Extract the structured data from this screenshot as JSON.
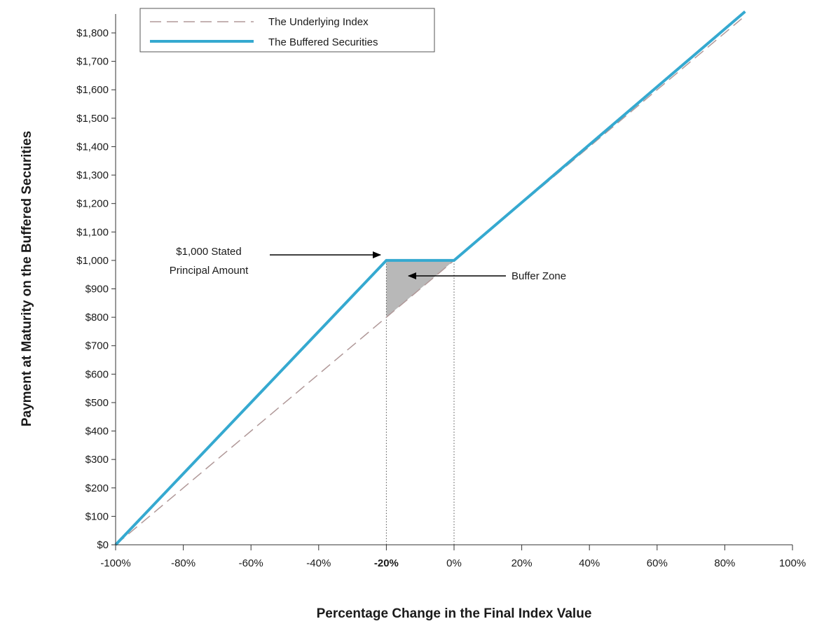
{
  "chart_data": {
    "type": "line",
    "xlabel": "Percentage Change in the Final Index Value",
    "ylabel": "Payment at Maturity on the Buffered Securities",
    "xlim": [
      -100,
      100
    ],
    "ylim": [
      0,
      1800
    ],
    "x_ticks": [
      -100,
      -80,
      -60,
      -40,
      -20,
      0,
      20,
      40,
      60,
      80,
      100
    ],
    "x_tick_labels": [
      "-100%",
      "-80%",
      "-60%",
      "-40%",
      "-20%",
      "0%",
      "20%",
      "40%",
      "60%",
      "80%",
      "100%"
    ],
    "y_ticks": [
      0,
      100,
      200,
      300,
      400,
      500,
      600,
      700,
      800,
      900,
      1000,
      1100,
      1200,
      1300,
      1400,
      1500,
      1600,
      1700,
      1800
    ],
    "y_tick_labels": [
      "$0",
      "$100",
      "$200",
      "$300",
      "$400",
      "$500",
      "$600",
      "$700",
      "$800",
      "$900",
      "$1,000",
      "$1,100",
      "$1,200",
      "$1,300",
      "$1,400",
      "$1,500",
      "$1,600",
      "$1,700",
      "$1,800"
    ],
    "series": [
      {
        "name": "The Underlying Index",
        "style": "dashed",
        "color": "#b09898",
        "points": [
          [
            -100,
            0
          ],
          [
            -20,
            800
          ],
          [
            0,
            1000
          ],
          [
            85,
            1850
          ]
        ]
      },
      {
        "name": "The Buffered Securities",
        "style": "solid",
        "color": "#35a9d0",
        "points": [
          [
            -100,
            0
          ],
          [
            -20,
            1000
          ],
          [
            0,
            1000
          ],
          [
            86,
            1875
          ]
        ]
      }
    ],
    "buffer_zone": {
      "label": "Buffer Zone",
      "points": [
        [
          -20,
          800
        ],
        [
          -20,
          1000
        ],
        [
          0,
          1000
        ]
      ],
      "color": "#b8b8b8"
    },
    "annotations": [
      {
        "text_lines": [
          "$1,000 Stated",
          "Principal Amount"
        ],
        "target": [
          -20,
          1000
        ]
      }
    ],
    "reference_lines": [
      -20,
      0
    ],
    "legend_position": "top-left",
    "grid": false
  }
}
